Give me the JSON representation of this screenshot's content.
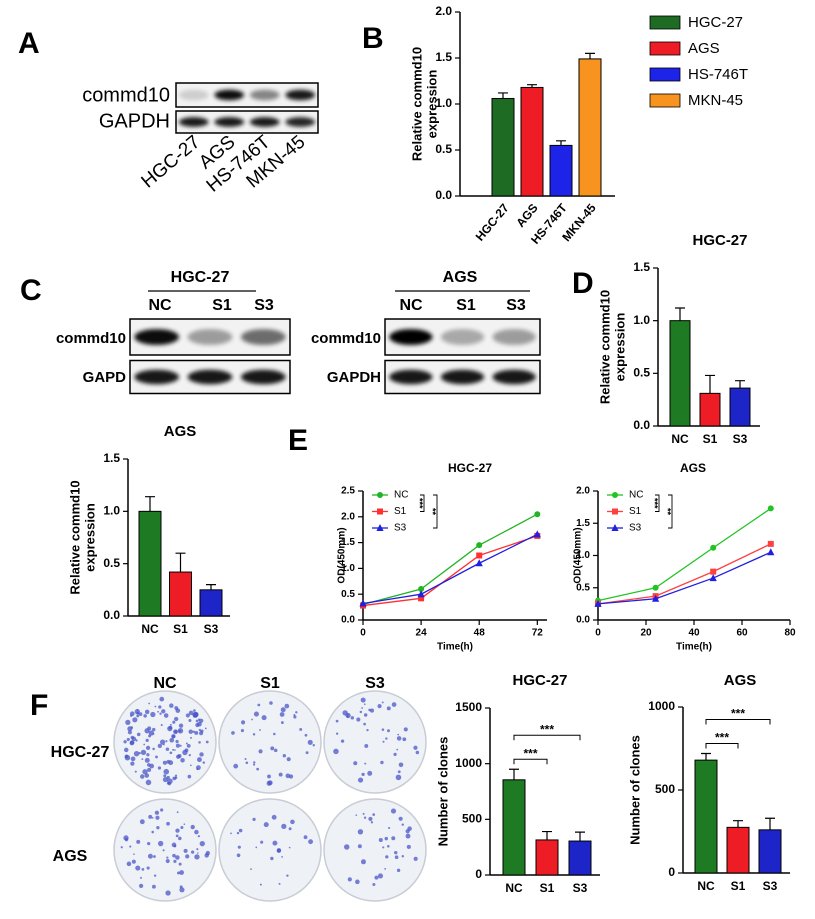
{
  "panel_labels": [
    "A",
    "B",
    "C",
    "D",
    "E",
    "F"
  ],
  "blot_a": {
    "rows": [
      "commd10",
      "GAPDH"
    ],
    "lanes": [
      "HGC-27",
      "AGS",
      "HS-746T",
      "MKN-45"
    ]
  },
  "blot_c": [
    {
      "title": "HGC-27",
      "lanes": [
        "NC",
        "S1",
        "S3"
      ],
      "rows": [
        "commd10",
        "GAPD"
      ]
    },
    {
      "title": "AGS",
      "lanes": [
        "NC",
        "S1",
        "S3"
      ],
      "rows": [
        "commd10",
        "GAPDH"
      ]
    }
  ],
  "colony": {
    "columns": [
      "NC",
      "S1",
      "S3"
    ],
    "rows": [
      "HGC-27",
      "AGS"
    ]
  },
  "chart_data": [
    {
      "type": "bar",
      "ylabel": [
        "Relative commd10",
        "expression"
      ],
      "categories": [
        "HGC-27",
        "AGS",
        "HS-746T",
        "MKN-45"
      ],
      "values": [
        1.06,
        1.18,
        0.55,
        1.49
      ],
      "errors": [
        0.06,
        0.03,
        0.05,
        0.06
      ],
      "colors": [
        "#1e6b23",
        "#ee1c25",
        "#1d24e8",
        "#f7931e"
      ],
      "legend": "right",
      "ylim": [
        0,
        2
      ],
      "yticks": [
        {
          "value": 0,
          "label": "0.0"
        },
        0.5,
        {
          "value": 1,
          "label": "1.0"
        },
        1.5,
        {
          "value": 2,
          "label": "2.0"
        }
      ]
    },
    {
      "type": "bar",
      "title": "HGC-27",
      "ylabel": [
        "Relative commd10",
        "expression"
      ],
      "categories": [
        "NC",
        "S1",
        "S3"
      ],
      "values": [
        1.0,
        0.31,
        0.36
      ],
      "errors": [
        0.12,
        0.17,
        0.07
      ],
      "colors": [
        "#1e7a23",
        "#ee1c25",
        "#1d24c8"
      ],
      "ylim": [
        0,
        1.5
      ],
      "yticks": [
        {
          "value": 0,
          "label": "0.0"
        },
        0.5,
        {
          "value": 1,
          "label": "1.0"
        },
        1.5
      ]
    },
    {
      "type": "bar",
      "title": "AGS",
      "ylabel": [
        "Relative commd10",
        "expression"
      ],
      "categories": [
        "NC",
        "S1",
        "S3"
      ],
      "values": [
        1.0,
        0.42,
        0.25
      ],
      "errors": [
        0.14,
        0.18,
        0.05
      ],
      "colors": [
        "#1e7a23",
        "#ee1c25",
        "#1d24c8"
      ],
      "ylim": [
        0,
        1.5
      ],
      "yticks": [
        {
          "value": 0,
          "label": "0.0"
        },
        0.5,
        {
          "value": 1,
          "label": "1.0"
        },
        1.5
      ]
    },
    {
      "type": "line",
      "title": "HGC-27",
      "xlabel": "Time(h)",
      "ylabel": [
        "OD(450mm)"
      ],
      "x": [
        0,
        24,
        48,
        72
      ],
      "series": [
        {
          "name": "NC",
          "color": "#22b422",
          "marker": "circle",
          "values": [
            0.3,
            0.6,
            1.45,
            2.05
          ]
        },
        {
          "name": "S1",
          "color": "#ff3030",
          "marker": "square",
          "values": [
            0.28,
            0.42,
            1.25,
            1.63
          ]
        },
        {
          "name": "S3",
          "color": "#2020e0",
          "marker": "triangle",
          "values": [
            0.32,
            0.5,
            1.1,
            1.66
          ]
        }
      ],
      "annotations": [
        "***",
        "**"
      ],
      "xlim": [
        0,
        76
      ],
      "xticks": [
        0,
        24,
        48,
        72
      ],
      "ylim": [
        0,
        2.5
      ],
      "yticks": [
        {
          "value": 0,
          "label": "0.0"
        },
        0.5,
        {
          "value": 1,
          "label": "1.0"
        },
        1.5,
        {
          "value": 2,
          "label": "2.0"
        },
        2.5
      ]
    },
    {
      "type": "line",
      "title": "AGS",
      "xlabel": "Time(h)",
      "ylabel": [
        "OD(450mm)"
      ],
      "x": [
        0,
        24,
        48,
        72
      ],
      "series": [
        {
          "name": "NC",
          "color": "#22c422",
          "marker": "circle",
          "values": [
            0.3,
            0.5,
            1.12,
            1.73
          ]
        },
        {
          "name": "S1",
          "color": "#ff4040",
          "marker": "square",
          "values": [
            0.25,
            0.37,
            0.75,
            1.18
          ]
        },
        {
          "name": "S3",
          "color": "#2020e0",
          "marker": "triangle",
          "values": [
            0.25,
            0.33,
            0.65,
            1.05
          ]
        }
      ],
      "annotations": [
        "***",
        "**"
      ],
      "xlim": [
        0,
        80
      ],
      "xticks": [
        0,
        20,
        40,
        60,
        80
      ],
      "ylim": [
        0,
        2
      ],
      "yticks": [
        {
          "value": 0,
          "label": "0.0"
        },
        0.5,
        {
          "value": 1,
          "label": "1.0"
        },
        1.5,
        {
          "value": 2,
          "label": "2.0"
        }
      ]
    },
    {
      "type": "bar",
      "title": "HGC-27",
      "ylabel": [
        "Number of clones"
      ],
      "categories": [
        "NC",
        "S1",
        "S3"
      ],
      "values": [
        855,
        315,
        305
      ],
      "errors": [
        95,
        75,
        80
      ],
      "colors": [
        "#1e7a23",
        "#ee1c25",
        "#1d24c8"
      ],
      "annotations": [
        "***",
        "***"
      ],
      "ylim": [
        0,
        1500
      ],
      "yticks": [
        0,
        500,
        1000,
        1500
      ]
    },
    {
      "type": "bar",
      "title": "AGS",
      "ylabel": [
        "Number of clones"
      ],
      "categories": [
        "NC",
        "S1",
        "S3"
      ],
      "values": [
        680,
        275,
        260
      ],
      "errors": [
        40,
        40,
        70
      ],
      "colors": [
        "#1e7a23",
        "#ee1c25",
        "#1d24c8"
      ],
      "annotations": [
        "***",
        "***"
      ],
      "ylim": [
        0,
        1000
      ],
      "yticks": [
        0,
        500,
        1000
      ]
    }
  ]
}
